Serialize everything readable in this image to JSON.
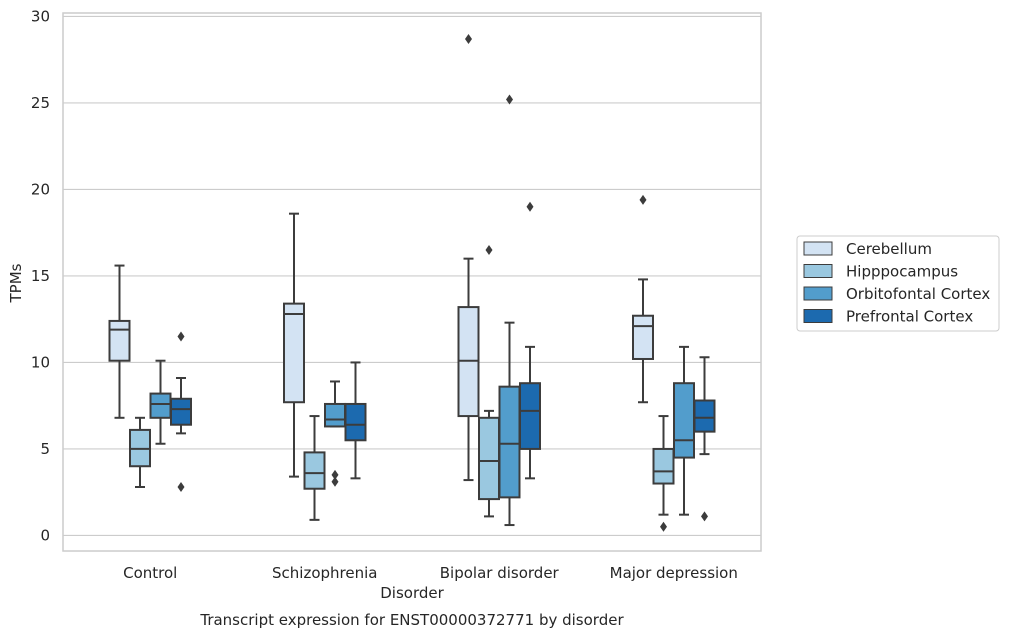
{
  "chart_data": {
    "type": "box",
    "title": "",
    "caption": "Transcript expression for ENST00000372771 by disorder",
    "xlabel": "Disorder",
    "ylabel": "TPMs",
    "ylim": [
      -0.9,
      30.2
    ],
    "yticks": [
      0,
      5,
      10,
      15,
      20,
      25,
      30
    ],
    "categories": [
      "Control",
      "Schizophrenia",
      "Bipolar disorder",
      "Major depression"
    ],
    "grid": "horizontal",
    "legend_position": "right",
    "series": [
      {
        "name": "Cerebellum",
        "color": "#d3e3f3",
        "boxes": [
          {
            "whisker_low": 6.8,
            "q1": 10.1,
            "median": 11.9,
            "q3": 12.4,
            "whisker_high": 15.6,
            "outliers": []
          },
          {
            "whisker_low": 3.4,
            "q1": 7.7,
            "median": 12.8,
            "q3": 13.4,
            "whisker_high": 18.6,
            "outliers": []
          },
          {
            "whisker_low": 3.2,
            "q1": 6.9,
            "median": 10.1,
            "q3": 13.2,
            "whisker_high": 16.0,
            "outliers": [
              28.7
            ]
          },
          {
            "whisker_low": 7.7,
            "q1": 10.2,
            "median": 12.1,
            "q3": 12.7,
            "whisker_high": 14.8,
            "outliers": [
              19.4
            ]
          }
        ]
      },
      {
        "name": "Hipppocampus",
        "color": "#9ac8e0",
        "boxes": [
          {
            "whisker_low": 2.8,
            "q1": 4.0,
            "median": 5.0,
            "q3": 6.1,
            "whisker_high": 6.8,
            "outliers": []
          },
          {
            "whisker_low": 0.9,
            "q1": 2.7,
            "median": 3.6,
            "q3": 4.8,
            "whisker_high": 6.9,
            "outliers": []
          },
          {
            "whisker_low": 1.1,
            "q1": 2.1,
            "median": 4.3,
            "q3": 6.8,
            "whisker_high": 7.2,
            "outliers": [
              16.5
            ]
          },
          {
            "whisker_low": 1.2,
            "q1": 3.0,
            "median": 3.7,
            "q3": 5.0,
            "whisker_high": 6.9,
            "outliers": [
              0.5
            ]
          }
        ]
      },
      {
        "name": "Orbitofontal Cortex",
        "color": "#529dcc",
        "boxes": [
          {
            "whisker_low": 5.3,
            "q1": 6.8,
            "median": 7.6,
            "q3": 8.2,
            "whisker_high": 10.1,
            "outliers": []
          },
          {
            "whisker_low": 6.3,
            "q1": 6.3,
            "median": 6.7,
            "q3": 7.6,
            "whisker_high": 8.9,
            "outliers": [
              3.5,
              3.1
            ]
          },
          {
            "whisker_low": 0.6,
            "q1": 2.2,
            "median": 5.3,
            "q3": 8.6,
            "whisker_high": 12.3,
            "outliers": [
              25.2
            ]
          },
          {
            "whisker_low": 1.2,
            "q1": 4.5,
            "median": 5.5,
            "q3": 8.8,
            "whisker_high": 10.9,
            "outliers": []
          }
        ]
      },
      {
        "name": "Prefrontal Cortex",
        "color": "#1c6aaf",
        "boxes": [
          {
            "whisker_low": 5.9,
            "q1": 6.4,
            "median": 7.3,
            "q3": 7.9,
            "whisker_high": 9.1,
            "outliers": [
              11.5,
              2.8
            ]
          },
          {
            "whisker_low": 3.3,
            "q1": 5.5,
            "median": 6.4,
            "q3": 7.6,
            "whisker_high": 10.0,
            "outliers": []
          },
          {
            "whisker_low": 3.3,
            "q1": 5.0,
            "median": 7.2,
            "q3": 8.8,
            "whisker_high": 10.9,
            "outliers": [
              19.0
            ]
          },
          {
            "whisker_low": 4.7,
            "q1": 6.0,
            "median": 6.8,
            "q3": 7.8,
            "whisker_high": 10.3,
            "outliers": [
              1.1
            ]
          }
        ]
      }
    ]
  }
}
